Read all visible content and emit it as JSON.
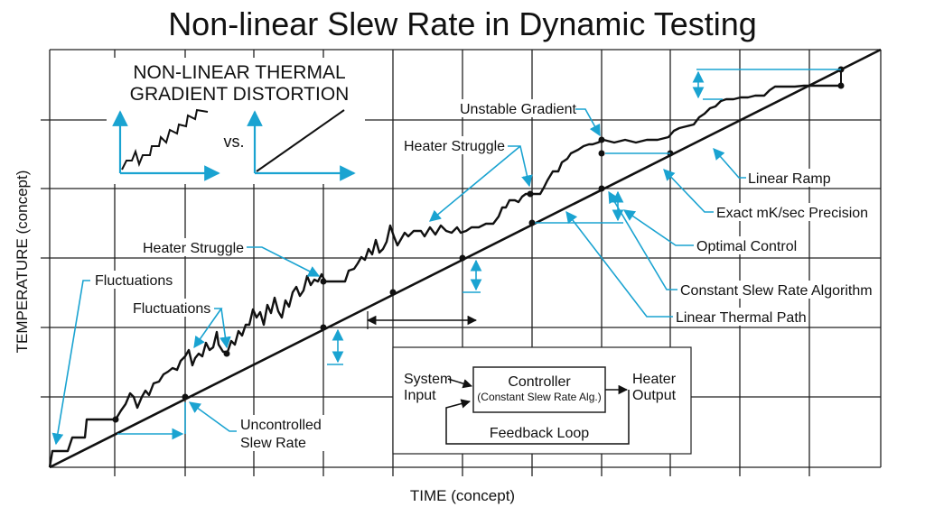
{
  "title": "Non-linear Slew Rate in Dynamic Testing",
  "xlabel": "TIME (concept)",
  "ylabel": "TEMPERATURE (concept)",
  "colors": {
    "annotation": "#1aa3d1",
    "curve": "#111111",
    "grid": "#222222"
  },
  "inset": {
    "title_line1": "NON-LINEAR THERMAL",
    "title_line2": "GRADIENT DISTORTION",
    "vs": "vs."
  },
  "annotations": {
    "unstable_gradient": "Unstable Gradient",
    "heater_struggle_top": "Heater Struggle",
    "heater_struggle_mid": "Heater Struggle",
    "fluctuations_left": "Fluctuations",
    "fluctuations_mid": "Fluctuations",
    "uncontrolled_line1": "Uncontrolled",
    "uncontrolled_line2": "Slew Rate",
    "linear_ramp": "Linear Ramp",
    "exact_precision": "Exact mK/sec Precision",
    "optimal_control": "Optimal Control",
    "constant_slew": "Constant Slew Rate Algorithm",
    "linear_path": "Linear Thermal Path"
  },
  "block_diagram": {
    "input_line1": "System",
    "input_line2": "Input",
    "controller": "Controller",
    "controller_sub": "(Constant Slew Rate Alg.)",
    "output_line1": "Heater",
    "output_line2": "Output",
    "feedback": "Feedback Loop"
  }
}
